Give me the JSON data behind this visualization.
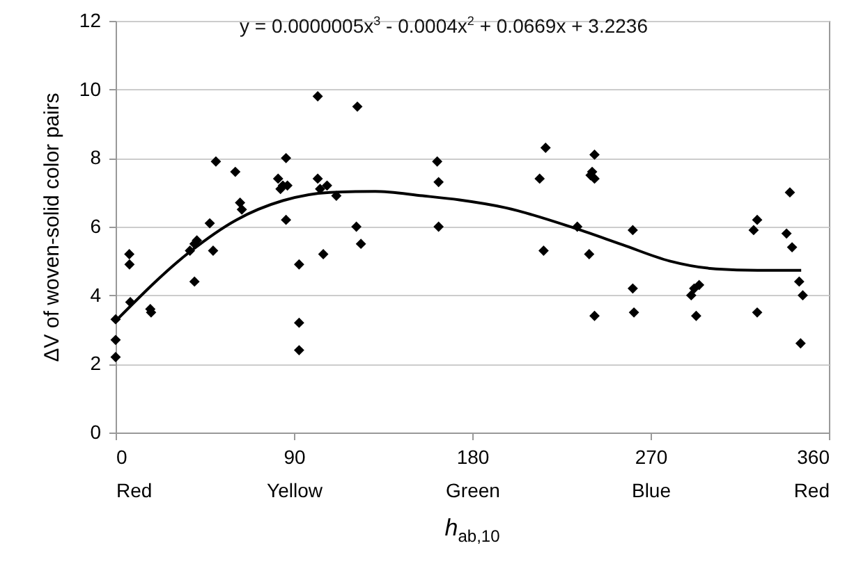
{
  "chart_data": {
    "type": "scatter",
    "xlabel": "h$_{ab,10}$",
    "ylabel": "ΔV of woven-solid color pairs",
    "annotations": [
      "y = 0.0000005x$^{3}$ - 0.0004x$^{2}$ + 0.0669x + 3.2236"
    ],
    "xlim": [
      0,
      360
    ],
    "xticks": [
      {
        "value": 0,
        "label": "0\nRed"
      },
      {
        "value": 90,
        "label": "90\nYellow"
      },
      {
        "value": 180,
        "label": "180\nGreen"
      },
      {
        "value": 270,
        "label": "270\nBlue"
      },
      {
        "value": 360,
        "label": "360\nRed"
      }
    ],
    "ylim": [
      0,
      12
    ],
    "yticks": [
      0,
      2,
      4,
      6,
      8,
      10,
      12
    ],
    "grid": "y",
    "line_style": "solid",
    "series": [
      {
        "color": "#000000",
        "marker": "diamond",
        "x": [
          0,
          0,
          0,
          6.9,
          7,
          7.4,
          17.5,
          17.9,
          37.5,
          39.8,
          41,
          39.8,
          47.5,
          49.2,
          50.6,
          60.4,
          62.8,
          63.7,
          82,
          83.2,
          84.4,
          86.7,
          86,
          86,
          92.6,
          92.6,
          92.6,
          102,
          102,
          103.2,
          106.7,
          104.8,
          111.4,
          122,
          121.5,
          123.8,
          162.3,
          163,
          163,
          217,
          214,
          216,
          241.7,
          240.5,
          241.7,
          239.7,
          233,
          239,
          241.7,
          261,
          261,
          261.6,
          290.5,
          292,
          294.5,
          293,
          323.8,
          322,
          323.8,
          340.3,
          338.6,
          341.4,
          345,
          346.8,
          345.7
        ],
        "values": [
          3.3,
          2.7,
          2.2,
          5.2,
          4.9,
          3.8,
          3.6,
          3.5,
          5.3,
          5.5,
          5.6,
          4.4,
          6.1,
          5.3,
          7.9,
          7.6,
          6.7,
          6.5,
          7.4,
          7.1,
          7.2,
          7.2,
          8,
          6.2,
          4.9,
          3.2,
          2.4,
          9.8,
          7.4,
          7.1,
          7.2,
          5.2,
          6.9,
          9.5,
          6,
          5.5,
          7.9,
          7.3,
          6,
          8.3,
          7.4,
          5.3,
          8.1,
          7.6,
          7.4,
          7.5,
          6,
          5.2,
          3.4,
          5.9,
          4.2,
          3.5,
          4,
          4.2,
          4.3,
          3.4,
          6.2,
          5.9,
          3.5,
          7,
          5.8,
          5.4,
          4.4,
          4,
          2.6
        ]
      },
      {
        "type": "line",
        "color": "#000000",
        "marker": "none",
        "x": [
          0,
          37.5,
          61,
          84.4,
          108,
          131,
          155,
          173.6,
          197,
          232,
          256,
          279.6,
          303,
          324,
          346
        ],
        "values": [
          3.25,
          5.27,
          6.2,
          6.76,
          7,
          7.03,
          6.9,
          6.78,
          6.55,
          5.95,
          5.47,
          5,
          4.77,
          4.73,
          4.73
        ]
      }
    ]
  }
}
